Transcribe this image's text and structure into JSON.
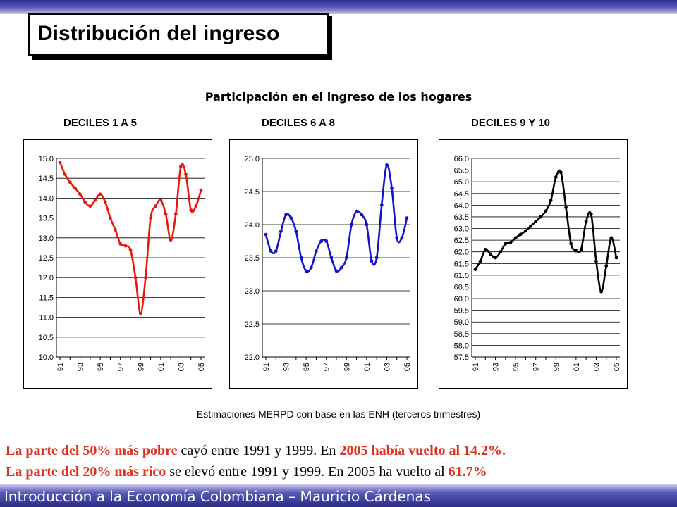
{
  "slide_title": "Distribución del ingreso",
  "footer": "Introducción a la Economía Colombiana – Mauricio Cárdenas",
  "source_note": "Estimaciones MERPD con base en las ENH (terceros trimestres)",
  "chart_data": [
    {
      "type": "line",
      "title": "Participación en el ingreso de los hogares",
      "subtitle": "DECILES 1 A 5",
      "categories": [
        "91",
        "93",
        "95",
        "97",
        "99",
        "01",
        "03",
        "05"
      ],
      "x": [
        1991,
        1991.5,
        1992,
        1992.5,
        1993,
        1993.5,
        1994,
        1994.5,
        1995,
        1995.5,
        1996,
        1996.5,
        1997,
        1997.5,
        1998,
        1998.5,
        1999,
        1999.5,
        2000,
        2000.5,
        2001,
        2001.5,
        2002,
        2002.5,
        2003,
        2003.5,
        2004,
        2004.5,
        2005
      ],
      "values": [
        14.9,
        14.6,
        14.4,
        14.25,
        14.1,
        13.9,
        13.8,
        13.95,
        14.1,
        13.9,
        13.5,
        13.2,
        12.85,
        12.8,
        12.7,
        12.0,
        11.1,
        12.0,
        13.5,
        13.8,
        13.95,
        13.6,
        12.95,
        13.6,
        14.8,
        14.6,
        13.7,
        13.8,
        14.2
      ],
      "ylim": [
        10.0,
        15.0
      ],
      "yticks": [
        10.0,
        10.5,
        11.0,
        11.5,
        12.0,
        12.5,
        13.0,
        13.5,
        14.0,
        14.5,
        15.0
      ],
      "color": "#e8190c"
    },
    {
      "type": "line",
      "subtitle": "DECILES 6 A 8",
      "categories": [
        "91",
        "93",
        "95",
        "97",
        "99",
        "01",
        "03",
        "05"
      ],
      "x": [
        1991,
        1991.5,
        1992,
        1992.5,
        1993,
        1993.5,
        1994,
        1994.5,
        1995,
        1995.5,
        1996,
        1996.5,
        1997,
        1997.5,
        1998,
        1998.5,
        1999,
        1999.5,
        2000,
        2000.5,
        2001,
        2001.5,
        2002,
        2002.5,
        2003,
        2003.5,
        2004,
        2004.5,
        2005
      ],
      "values": [
        23.85,
        23.6,
        23.6,
        23.9,
        24.15,
        24.1,
        23.9,
        23.5,
        23.3,
        23.35,
        23.6,
        23.75,
        23.75,
        23.5,
        23.3,
        23.35,
        23.5,
        24.0,
        24.2,
        24.15,
        24.0,
        23.45,
        23.5,
        24.3,
        24.9,
        24.55,
        23.8,
        23.8,
        24.1
      ],
      "ylim": [
        22.0,
        25.0
      ],
      "yticks": [
        22.0,
        22.5,
        23.0,
        23.5,
        24.0,
        24.5,
        25.0
      ],
      "color": "#1212cc"
    },
    {
      "type": "line",
      "subtitle": "DECILES 9 Y 10",
      "categories": [
        "91",
        "93",
        "95",
        "97",
        "99",
        "01",
        "03",
        "05"
      ],
      "x": [
        1991,
        1991.5,
        1992,
        1992.5,
        1993,
        1993.5,
        1994,
        1994.5,
        1995,
        1995.5,
        1996,
        1996.5,
        1997,
        1997.5,
        1998,
        1998.5,
        1999,
        1999.5,
        2000,
        2000.5,
        2001,
        2001.5,
        2002,
        2002.5,
        2003,
        2003.5,
        2004,
        2004.5,
        2005
      ],
      "values": [
        61.25,
        61.6,
        62.1,
        61.9,
        61.75,
        62.0,
        62.35,
        62.4,
        62.6,
        62.75,
        62.9,
        63.1,
        63.3,
        63.5,
        63.75,
        64.2,
        65.2,
        65.4,
        63.9,
        62.35,
        62.05,
        62.1,
        63.3,
        63.6,
        61.6,
        60.3,
        61.4,
        62.6,
        61.75
      ],
      "ylim": [
        57.5,
        66.0
      ],
      "yticks": [
        57.5,
        58.0,
        58.5,
        59.0,
        59.5,
        60.0,
        60.5,
        61.0,
        61.5,
        62.0,
        62.5,
        63.0,
        63.5,
        64.0,
        64.5,
        65.0,
        65.5,
        66.0
      ],
      "color": "#000000"
    }
  ],
  "notes": {
    "line1": {
      "a": "La parte del 50% más pobre",
      "b": " cayó entre 1991 y 1999. En ",
      "c": "2005 había vuelto al 14.2%."
    },
    "line2": {
      "a": "La parte del 20% más rico",
      "b": " se elevó entre 1991 y 1999. En 2005 ha vuelto al ",
      "c": "61.7%"
    }
  }
}
